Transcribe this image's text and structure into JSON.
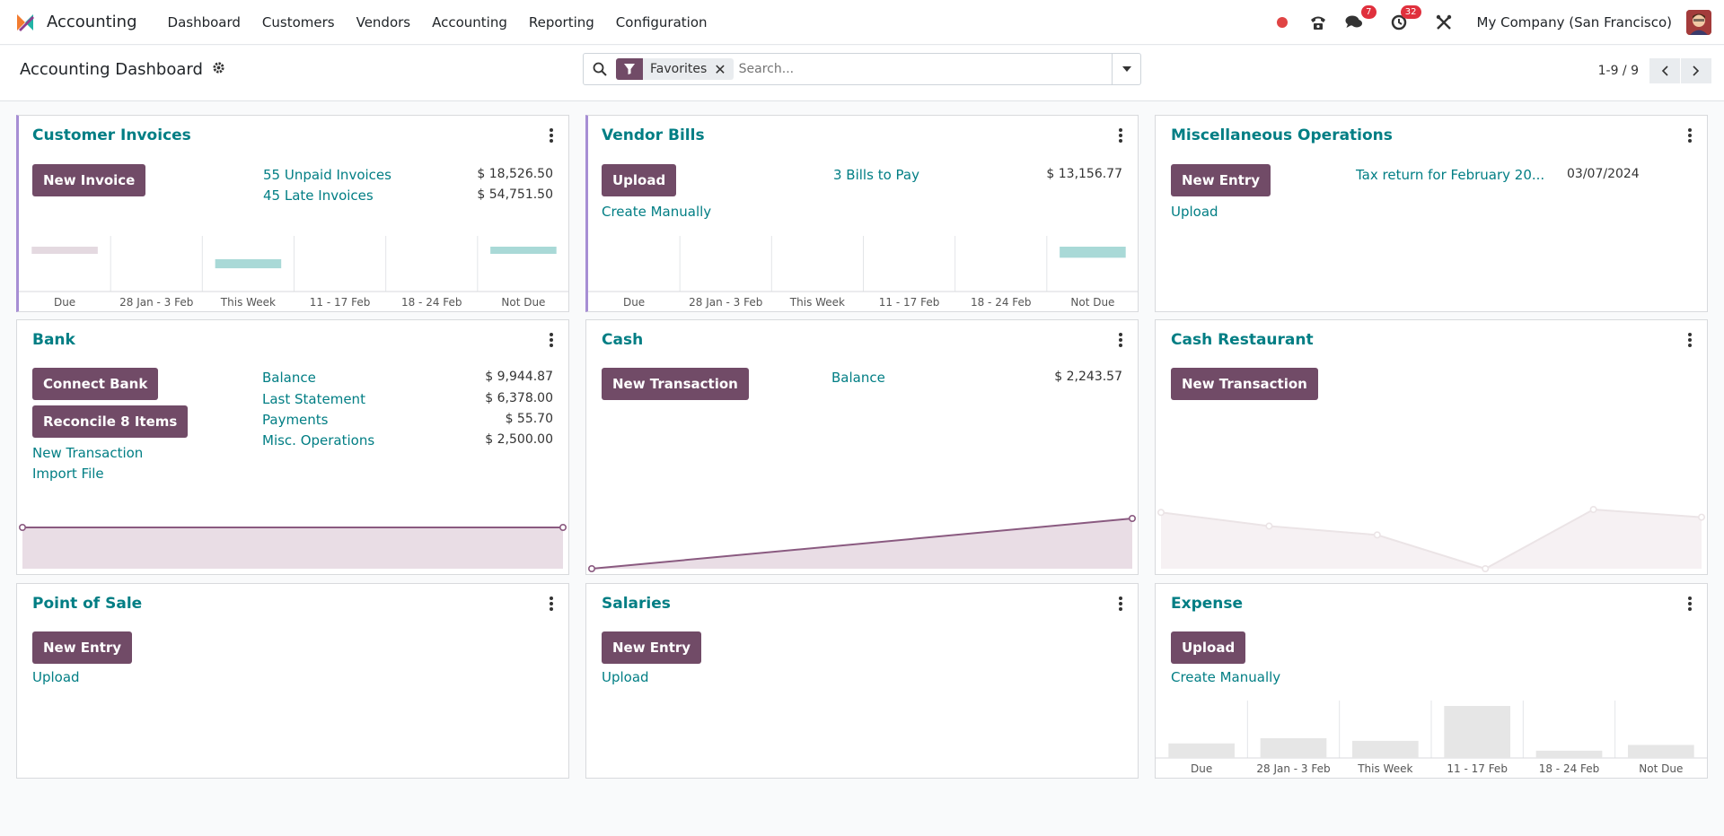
{
  "app": {
    "name": "Accounting",
    "menu": [
      "Dashboard",
      "Customers",
      "Vendors",
      "Accounting",
      "Reporting",
      "Configuration"
    ]
  },
  "systray": {
    "messages_count": "7",
    "activities_count": "32",
    "company": "My Company (San Francisco)"
  },
  "control_panel": {
    "title": "Accounting Dashboard",
    "facet": "Favorites",
    "search_placeholder": "Search...",
    "pager": "1-9 / 9"
  },
  "colors": {
    "primary": "#714b67",
    "link": "#017e84",
    "accent_border": "#a78ed4",
    "due_bar": "#e4d9e0",
    "future_bar": "#a9d9d7",
    "badge": "#e0303d"
  },
  "cards": {
    "customer_invoices": {
      "title": "Customer Invoices",
      "button": "New Invoice",
      "stats": [
        {
          "label": "55 Unpaid Invoices",
          "value": "$ 18,526.50"
        },
        {
          "label": "45 Late Invoices",
          "value": "$ 54,751.50"
        }
      ],
      "chart": {
        "type": "bar",
        "categories": [
          "Due",
          "28 Jan - 3 Feb",
          "This Week",
          "11 - 17 Feb",
          "18 - 24 Feb",
          "Not Due"
        ],
        "values": [
          0.3,
          0,
          0.45,
          0,
          0,
          0.25
        ]
      }
    },
    "vendor_bills": {
      "title": "Vendor Bills",
      "button": "Upload",
      "link": "Create Manually",
      "stats": [
        {
          "label": "3 Bills to Pay",
          "value": "$ 13,156.77"
        }
      ],
      "chart": {
        "type": "bar",
        "categories": [
          "Due",
          "28 Jan - 3 Feb",
          "This Week",
          "11 - 17 Feb",
          "18 - 24 Feb",
          "Not Due"
        ],
        "values": [
          0,
          0,
          0,
          0,
          0,
          0.55
        ]
      }
    },
    "misc_operations": {
      "title": "Miscellaneous Operations",
      "button": "New Entry",
      "link": "Upload",
      "entry_label": "Tax return for February 20...",
      "entry_date": "03/07/2024"
    },
    "bank": {
      "title": "Bank",
      "buttons": [
        "Connect Bank",
        "Reconcile 8 Items"
      ],
      "links": [
        "New Transaction",
        "Import File"
      ],
      "stats": [
        {
          "label": "Balance",
          "value": "$ 9,944.87"
        },
        {
          "label": "Last Statement",
          "value": "$ 6,378.00"
        },
        {
          "label": "Payments",
          "value": "$ 55.70"
        },
        {
          "label": "Misc. Operations",
          "value": "$ 2,500.00"
        }
      ],
      "chart": {
        "type": "area",
        "values": [
          1,
          1
        ]
      }
    },
    "cash": {
      "title": "Cash",
      "button": "New Transaction",
      "stats": [
        {
          "label": "Balance",
          "value": "$ 2,243.57"
        }
      ],
      "chart": {
        "type": "area",
        "values": [
          0,
          1
        ]
      }
    },
    "cash_restaurant": {
      "title": "Cash Restaurant",
      "button": "New Transaction",
      "chart": {
        "type": "area",
        "values": [
          0.95,
          0.72,
          0.57,
          0,
          1,
          0.87
        ]
      }
    },
    "point_of_sale": {
      "title": "Point of Sale",
      "button": "New Entry",
      "link": "Upload"
    },
    "salaries": {
      "title": "Salaries",
      "button": "New Entry",
      "link": "Upload"
    },
    "expense": {
      "title": "Expense",
      "button": "Upload",
      "link": "Create Manually",
      "chart": {
        "type": "bar",
        "categories": [
          "Due",
          "28 Jan - 3 Feb",
          "This Week",
          "11 - 17 Feb",
          "18 - 24 Feb",
          "Not Due"
        ],
        "values": [
          0.28,
          0.38,
          0.33,
          1,
          0.14,
          0.25
        ]
      }
    }
  }
}
